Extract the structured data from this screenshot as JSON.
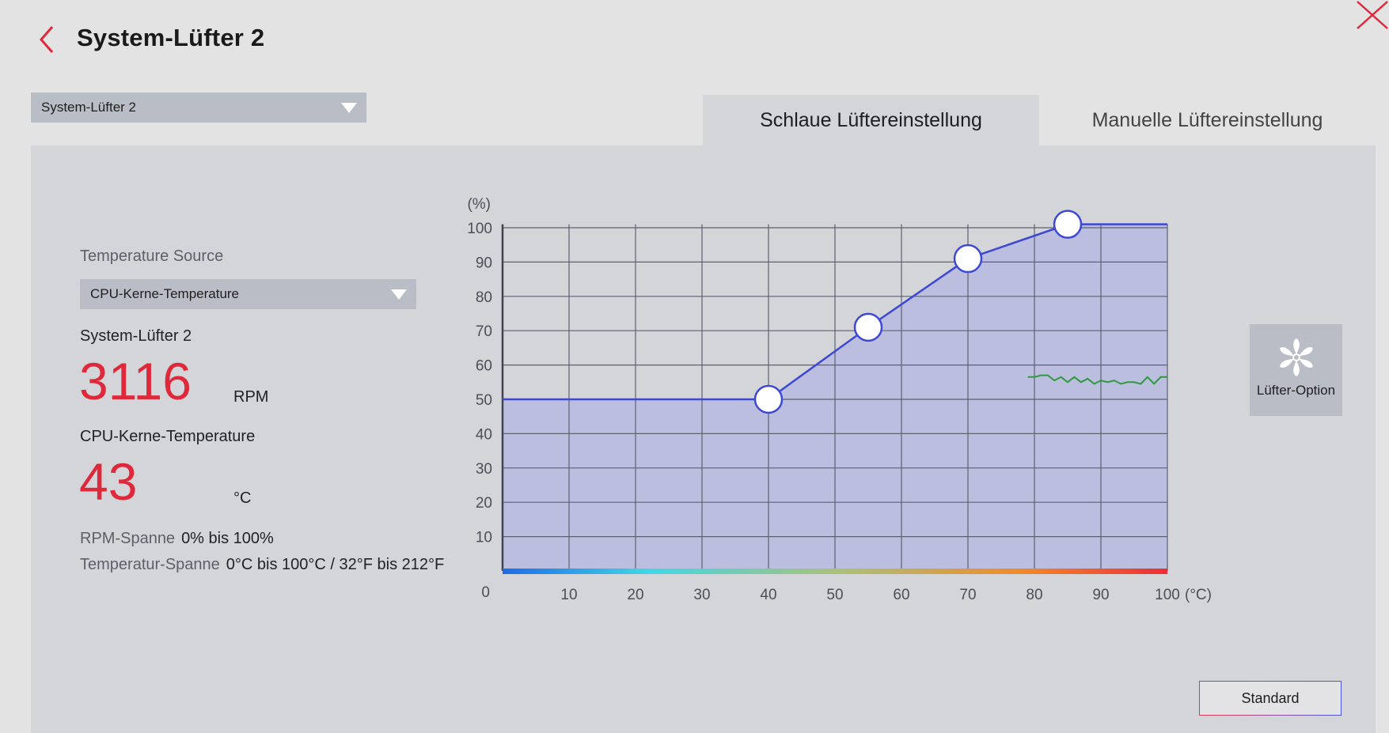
{
  "header": {
    "title": "System-Lüfter 2"
  },
  "fan_select": {
    "selected": "System-Lüfter 2"
  },
  "tabs": [
    {
      "label": "Schlaue Lüftereinstellung",
      "active": true
    },
    {
      "label": "Manuelle Lüftereinstellung",
      "active": false
    }
  ],
  "info": {
    "temp_source_label": "Temperature Source",
    "temp_source_selected": "CPU-Kerne-Temperature",
    "fan_name": "System-Lüfter 2",
    "rpm_value": "3116",
    "rpm_unit": "RPM",
    "temp_name": "CPU-Kerne-Temperature",
    "temp_value": "43",
    "temp_unit": "°C",
    "rpm_range_label": "RPM-Spanne",
    "rpm_range_value": "0% bis 100%",
    "temp_range_label": "Temperatur-Spanne",
    "temp_range_value": "0°C bis 100°C / 32°F bis 212°F"
  },
  "fan_option": {
    "label": "Lüfter-Option"
  },
  "standard_button": {
    "label": "Standard"
  },
  "icons": {
    "back": "chevron-left-icon",
    "close": "close-icon",
    "fan": "fan-icon",
    "dropdown": "caret-down-icon"
  },
  "colors": {
    "accent_red": "#e0283b",
    "curve": "#3e48d6",
    "fill": "#b3b6e0",
    "rpm_trace": "#2e9a3c"
  },
  "chart_data": {
    "type": "line",
    "ylabel": "(%)",
    "xlabel": "(°C)",
    "xlim": [
      0,
      100
    ],
    "ylim": [
      0,
      100
    ],
    "x_ticks": [
      "10",
      "20",
      "30",
      "40",
      "50",
      "60",
      "70",
      "80",
      "90",
      "100"
    ],
    "y_ticks": [
      "10",
      "20",
      "30",
      "40",
      "50",
      "60",
      "70",
      "80",
      "90",
      "100"
    ],
    "origin_label": "0",
    "grid": true,
    "series": [
      {
        "x": [
          0,
          40,
          55,
          70,
          85,
          100
        ],
        "y": [
          50,
          50,
          71,
          91,
          101,
          101
        ]
      },
      {
        "x": [
          79,
          80,
          81,
          82,
          83,
          84,
          85,
          86,
          87,
          88,
          89,
          90,
          91,
          92,
          93,
          94,
          95,
          96,
          97,
          98,
          99,
          100
        ],
        "y": [
          56.5,
          56.5,
          57,
          57,
          55.5,
          56.5,
          55,
          56.5,
          55,
          56,
          54.5,
          55.5,
          55,
          55.5,
          54.5,
          55,
          55,
          54.5,
          56.5,
          54.5,
          56.5,
          56.5
        ]
      }
    ],
    "control_points": [
      {
        "x": 40,
        "y": 50
      },
      {
        "x": 55,
        "y": 71
      },
      {
        "x": 70,
        "y": 91
      },
      {
        "x": 85,
        "y": 101
      }
    ]
  }
}
